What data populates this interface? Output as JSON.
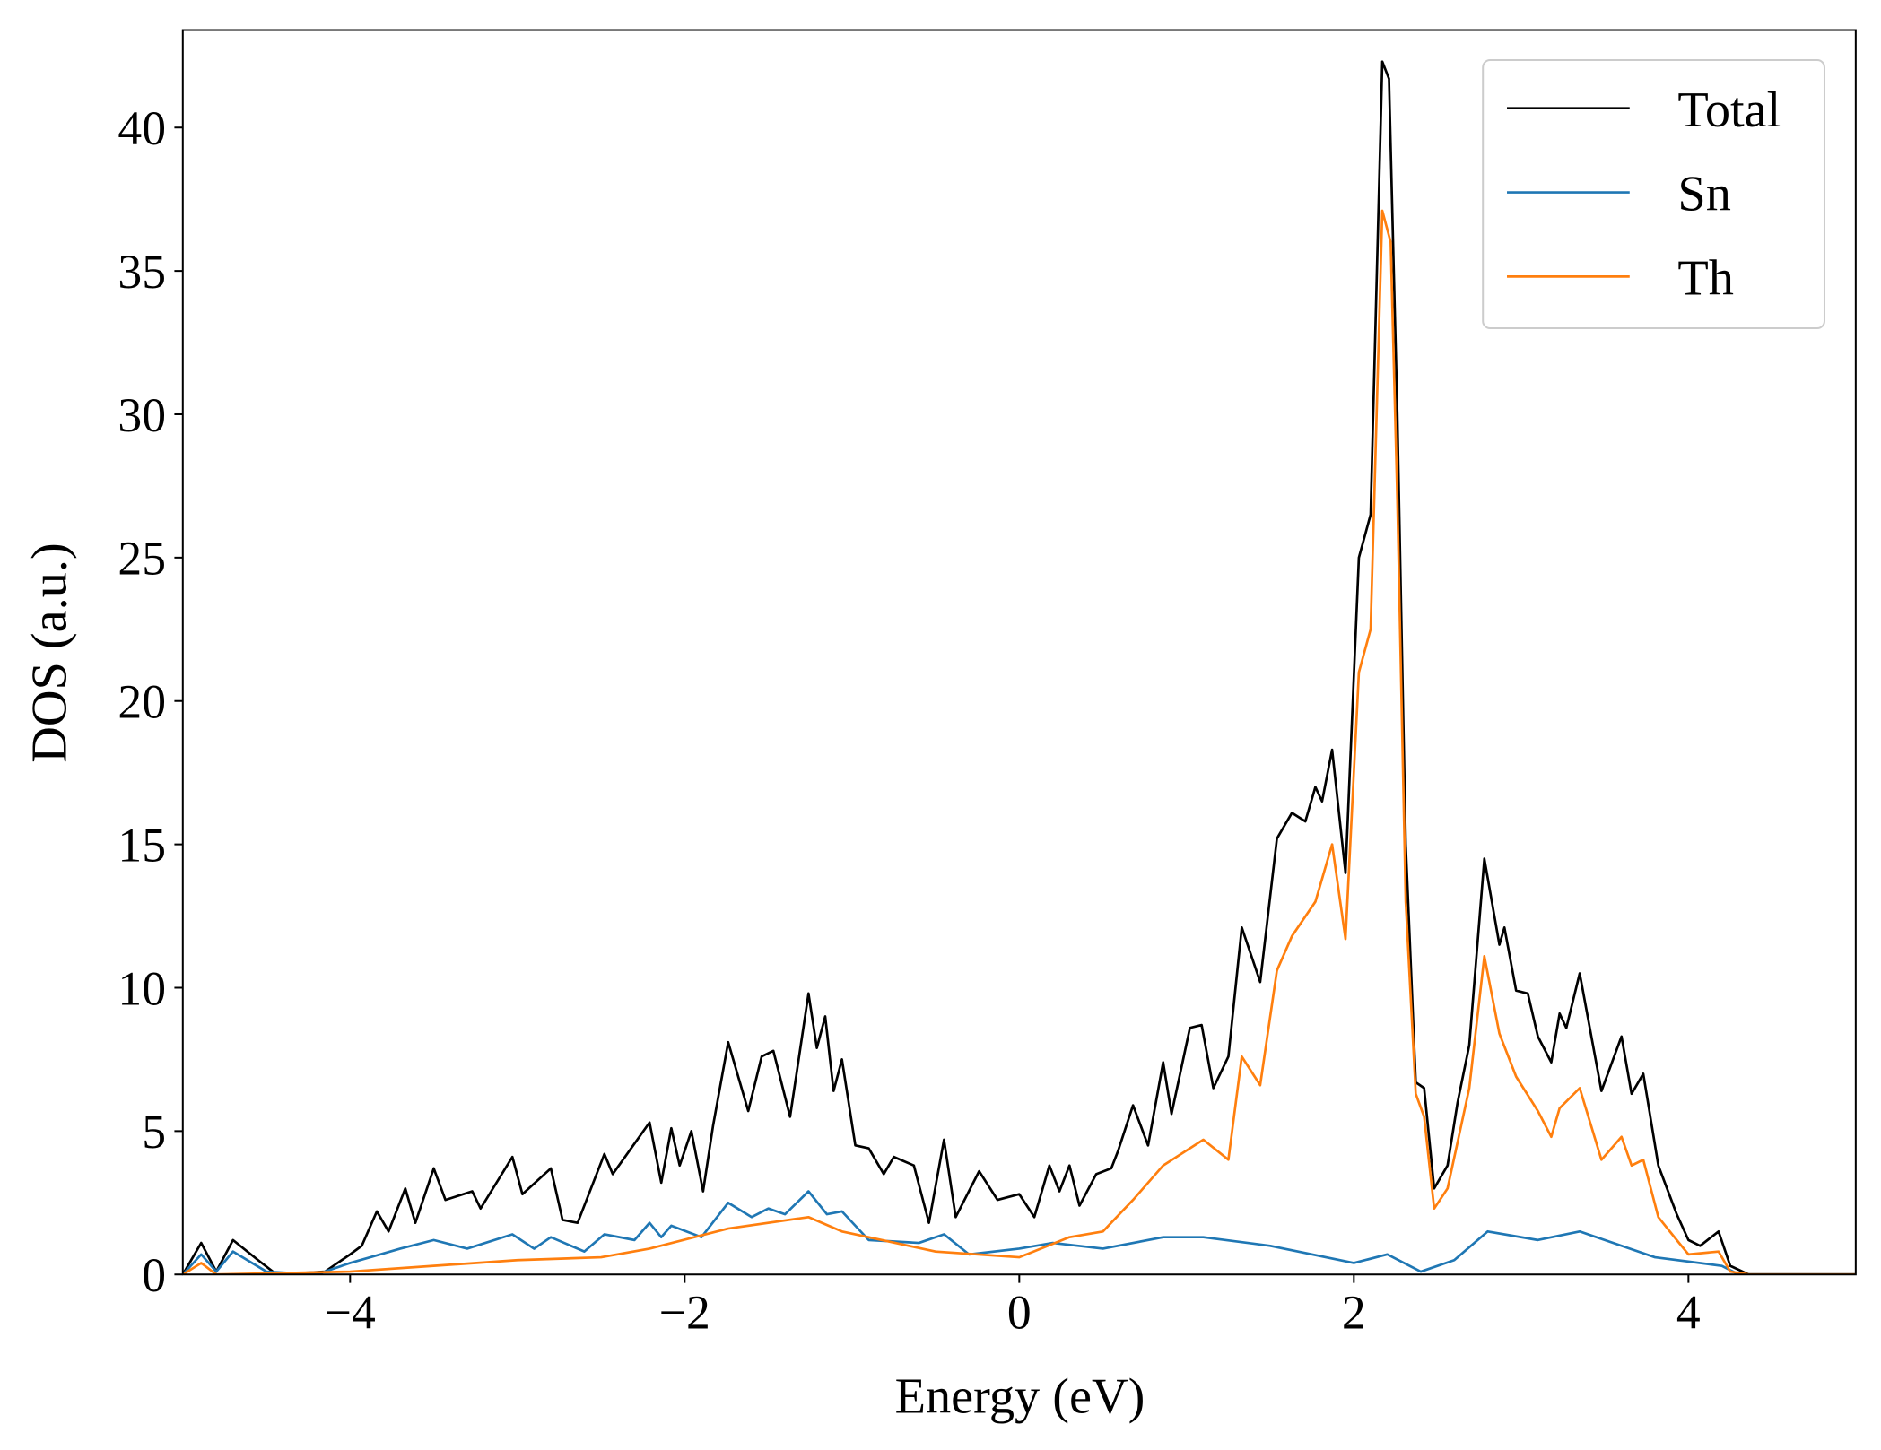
{
  "chart_data": {
    "type": "line",
    "xlabel": "Energy (eV)",
    "ylabel": "DOS (a.u.)",
    "xlim": [
      -5,
      5
    ],
    "ylim": [
      0,
      43.4
    ],
    "xticks": [
      {
        "value": -4,
        "label": "−4"
      },
      {
        "value": -2,
        "label": "−2"
      },
      0,
      2,
      4
    ],
    "yticks": [
      0,
      5,
      10,
      15,
      20,
      25,
      30,
      35,
      40
    ],
    "legend": "upper right",
    "grid": false,
    "series": [
      {
        "name": "Total",
        "color": "#000000",
        "x": [
          -5,
          -4.89,
          -4.8,
          -4.7,
          -4.55,
          -4.44,
          -4.15,
          -4.0,
          -3.93,
          -3.84,
          -3.77,
          -3.67,
          -3.61,
          -3.5,
          -3.43,
          -3.27,
          -3.22,
          -3.03,
          -2.97,
          -2.8,
          -2.73,
          -2.64,
          -2.48,
          -2.43,
          -2.21,
          -2.14,
          -2.08,
          -2.03,
          -1.96,
          -1.89,
          -1.83,
          -1.74,
          -1.62,
          -1.54,
          -1.47,
          -1.37,
          -1.26,
          -1.21,
          -1.16,
          -1.11,
          -1.06,
          -0.98,
          -0.9,
          -0.81,
          -0.75,
          -0.63,
          -0.54,
          -0.45,
          -0.38,
          -0.24,
          -0.13,
          0,
          0.09,
          0.18,
          0.24,
          0.3,
          0.36,
          0.46,
          0.55,
          0.59,
          0.68,
          0.77,
          0.86,
          0.91,
          1.02,
          1.09,
          1.16,
          1.25,
          1.33,
          1.44,
          1.54,
          1.63,
          1.71,
          1.77,
          1.81,
          1.87,
          1.95,
          2.03,
          2.1,
          2.17,
          2.21,
          2.26,
          2.31,
          2.37,
          2.42,
          2.48,
          2.56,
          2.62,
          2.69,
          2.78,
          2.87,
          2.9,
          2.97,
          3.04,
          3.1,
          3.18,
          3.23,
          3.27,
          3.35,
          3.48,
          3.6,
          3.66,
          3.73,
          3.82,
          3.93,
          4.0,
          4.07,
          4.18,
          4.25,
          4.36,
          5
        ],
        "values": [
          0,
          1.1,
          0.1,
          1.2,
          0.5,
          0,
          0.1,
          0.7,
          1.0,
          2.2,
          1.5,
          3.0,
          1.8,
          3.7,
          2.6,
          2.9,
          2.3,
          4.1,
          2.8,
          3.7,
          1.9,
          1.8,
          4.2,
          3.5,
          5.3,
          3.2,
          5.1,
          3.8,
          5.0,
          2.9,
          5.2,
          8.1,
          5.7,
          7.6,
          7.8,
          5.5,
          9.8,
          7.9,
          9.0,
          6.4,
          7.5,
          4.5,
          4.4,
          3.5,
          4.1,
          3.8,
          1.8,
          4.7,
          2.0,
          3.6,
          2.6,
          2.8,
          2.0,
          3.8,
          2.9,
          3.8,
          2.4,
          3.5,
          3.7,
          4.3,
          5.9,
          4.5,
          7.4,
          5.6,
          8.6,
          8.7,
          6.5,
          7.6,
          12.1,
          10.2,
          15.2,
          16.1,
          15.8,
          17.0,
          16.5,
          18.3,
          14.0,
          25.0,
          26.5,
          42.3,
          41.7,
          30,
          15,
          6.7,
          6.5,
          3.0,
          3.8,
          6.0,
          8,
          14.5,
          11.5,
          12.1,
          9.9,
          9.8,
          8.3,
          7.4,
          9.1,
          8.6,
          10.5,
          6.4,
          8.3,
          6.3,
          7.0,
          3.8,
          2.1,
          1.2,
          1.0,
          1.5,
          0.3,
          0,
          0
        ]
      },
      {
        "name": "Sn",
        "color": "#1f77b4",
        "x": [
          -5,
          -4.89,
          -4.8,
          -4.7,
          -4.5,
          -4.2,
          -4.0,
          -3.7,
          -3.5,
          -3.3,
          -3.03,
          -2.9,
          -2.8,
          -2.6,
          -2.48,
          -2.3,
          -2.21,
          -2.14,
          -2.08,
          -1.9,
          -1.74,
          -1.6,
          -1.5,
          -1.4,
          -1.26,
          -1.15,
          -1.06,
          -0.9,
          -0.6,
          -0.45,
          -0.3,
          0,
          0.2,
          0.5,
          0.86,
          1.1,
          1.5,
          2.0,
          2.2,
          2.4,
          2.6,
          2.8,
          3.1,
          3.35,
          3.5,
          3.8,
          4.2,
          4.3,
          5
        ],
        "values": [
          0,
          0.7,
          0.1,
          0.8,
          0.1,
          0,
          0.4,
          0.9,
          1.2,
          0.9,
          1.4,
          0.9,
          1.3,
          0.8,
          1.4,
          1.2,
          1.8,
          1.3,
          1.7,
          1.3,
          2.5,
          2.0,
          2.3,
          2.1,
          2.9,
          2.1,
          2.2,
          1.2,
          1.1,
          1.4,
          0.7,
          0.9,
          1.1,
          0.9,
          1.3,
          1.3,
          1.0,
          0.4,
          0.7,
          0.1,
          0.5,
          1.5,
          1.2,
          1.5,
          1.2,
          0.6,
          0.3,
          0,
          0
        ]
      },
      {
        "name": "Th",
        "color": "#ff7f0e",
        "x": [
          -5,
          -4.89,
          -4.8,
          -4.0,
          -3.5,
          -3.0,
          -2.5,
          -2.21,
          -1.74,
          -1.26,
          -1.06,
          -0.5,
          0,
          0.3,
          0.5,
          0.68,
          0.86,
          1.1,
          1.25,
          1.33,
          1.44,
          1.54,
          1.63,
          1.77,
          1.87,
          1.95,
          2.03,
          2.1,
          2.17,
          2.22,
          2.26,
          2.31,
          2.37,
          2.42,
          2.48,
          2.56,
          2.69,
          2.78,
          2.87,
          2.97,
          3.1,
          3.18,
          3.23,
          3.35,
          3.48,
          3.6,
          3.66,
          3.73,
          3.82,
          3.93,
          4.0,
          4.18,
          4.25,
          4.36,
          5
        ],
        "values": [
          0,
          0.4,
          0,
          0.1,
          0.3,
          0.5,
          0.6,
          0.9,
          1.6,
          2.0,
          1.5,
          0.8,
          0.6,
          1.3,
          1.5,
          2.6,
          3.8,
          4.7,
          4.0,
          7.6,
          6.6,
          10.6,
          11.8,
          13.0,
          15.0,
          11.7,
          21,
          22.5,
          37.1,
          36,
          27,
          13,
          6.3,
          5.5,
          2.3,
          3.0,
          6.5,
          11.1,
          8.4,
          6.9,
          5.7,
          4.8,
          5.8,
          6.5,
          4.0,
          4.8,
          3.8,
          4.0,
          2.0,
          1.2,
          0.7,
          0.8,
          0.1,
          0,
          0
        ]
      }
    ]
  }
}
